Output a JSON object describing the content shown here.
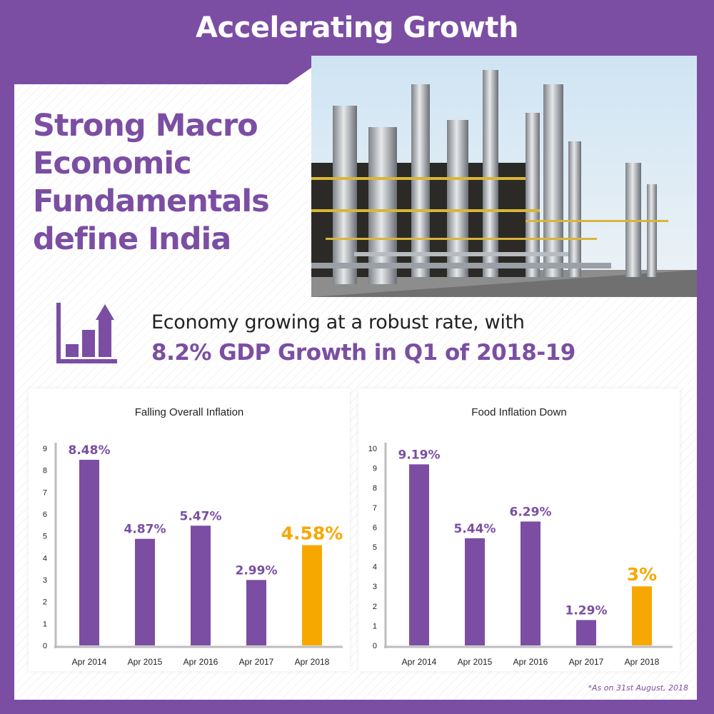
{
  "page": {
    "title": "Accelerating Growth",
    "headline": "Strong Macro Economic Fundamentals define India",
    "growth_text": "Economy growing at a robust rate, with",
    "growth_highlight": "8.2% GDP Growth in Q1 of 2018-19",
    "footnote": "*As on 31st August, 2018",
    "accent_color": "#7b4ea3",
    "highlight_color": "#f7a800",
    "icons": {
      "growth": "bar-chart-up-arrow-icon",
      "photo": "refinery-photo"
    }
  },
  "chart_data": [
    {
      "type": "bar",
      "title": "Falling Overall Inflation",
      "categories": [
        "Apr 2014",
        "Apr 2015",
        "Apr 2016",
        "Apr 2017",
        "Apr 2018"
      ],
      "values": [
        8.48,
        4.87,
        5.47,
        2.99,
        4.58
      ],
      "labels": [
        "8.48%",
        "4.87%",
        "5.47%",
        "2.99%",
        "4.58%"
      ],
      "yticks": [
        0,
        1,
        2,
        3,
        4,
        5,
        6,
        7,
        8,
        9
      ],
      "ylim": [
        0,
        9
      ],
      "highlight_index": 4,
      "bar_color": "#7b4ea3",
      "highlight_color": "#f7a800",
      "grid": false
    },
    {
      "type": "bar",
      "title": "Food Inflation Down",
      "categories": [
        "Apr 2014",
        "Apr 2015",
        "Apr 2016",
        "Apr 2017",
        "Apr 2018"
      ],
      "values": [
        9.19,
        5.44,
        6.29,
        1.29,
        3
      ],
      "labels": [
        "9.19%",
        "5.44%",
        "6.29%",
        "1.29%",
        "3%"
      ],
      "yticks": [
        0,
        1,
        2,
        3,
        4,
        5,
        6,
        7,
        8,
        9,
        10
      ],
      "ylim": [
        0,
        10
      ],
      "highlight_index": 4,
      "bar_color": "#7b4ea3",
      "highlight_color": "#f7a800",
      "grid": false
    }
  ]
}
